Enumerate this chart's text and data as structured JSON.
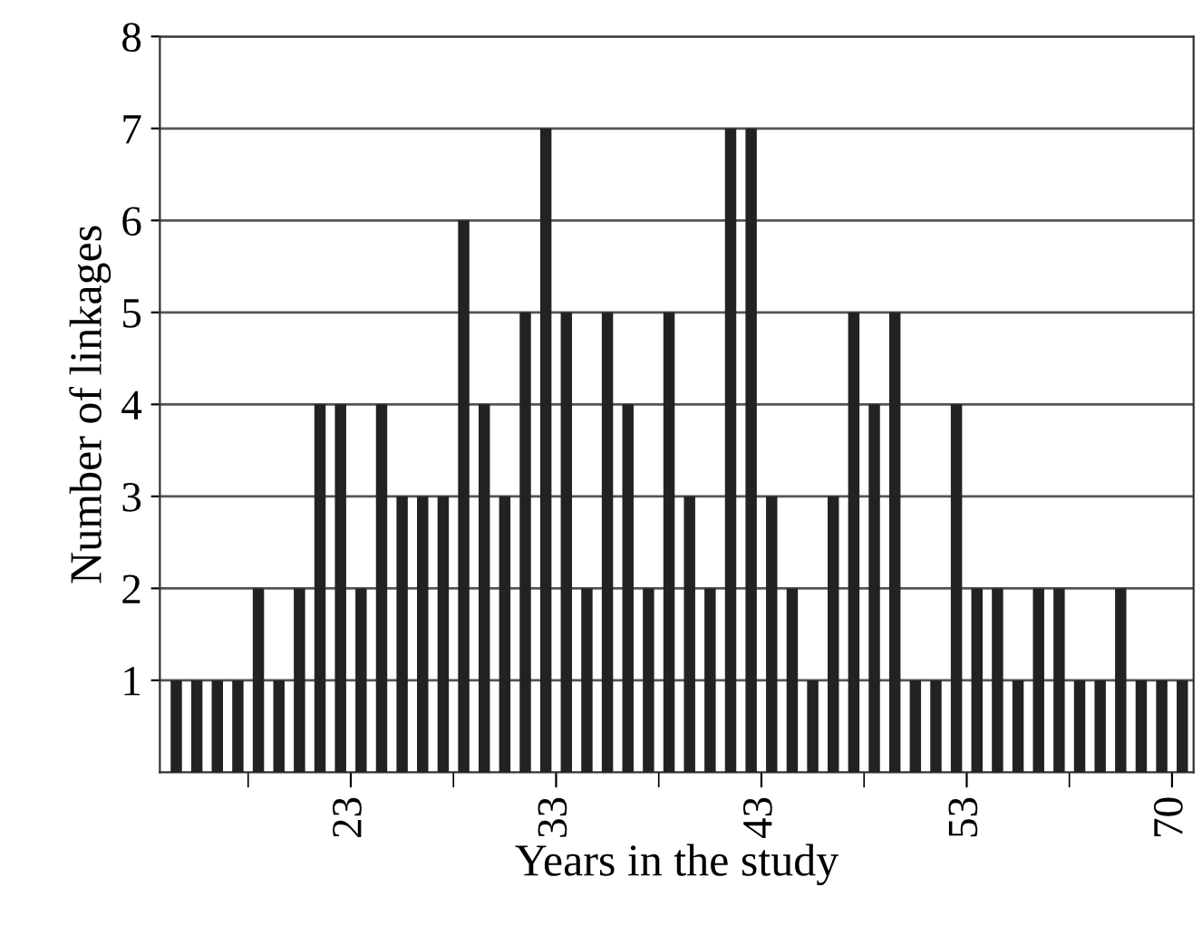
{
  "chart_data": {
    "type": "bar",
    "xlabel": "Years in the study",
    "ylabel": "Number of linkages",
    "categories": [
      null,
      null,
      null,
      null,
      null,
      null,
      null,
      null,
      null,
      "23",
      null,
      null,
      null,
      null,
      null,
      null,
      null,
      null,
      null,
      "33",
      null,
      null,
      null,
      null,
      null,
      null,
      null,
      null,
      null,
      "43",
      null,
      null,
      null,
      null,
      null,
      null,
      null,
      null,
      null,
      "53",
      null,
      null,
      null,
      null,
      null,
      null,
      null,
      null,
      null,
      "70"
    ],
    "values": [
      1,
      1,
      1,
      1,
      2,
      1,
      2,
      4,
      4,
      2,
      4,
      3,
      3,
      3,
      6,
      4,
      3,
      5,
      7,
      5,
      2,
      5,
      4,
      2,
      5,
      3,
      2,
      7,
      7,
      3,
      2,
      1,
      3,
      5,
      4,
      5,
      1,
      1,
      4,
      2,
      2,
      1,
      2,
      2,
      1,
      1,
      2,
      1,
      1,
      1
    ],
    "color": "#222222",
    "ylim": [
      0,
      8
    ],
    "yticks": [
      1,
      2,
      3,
      4,
      5,
      6,
      7,
      8
    ],
    "grid": "y"
  }
}
